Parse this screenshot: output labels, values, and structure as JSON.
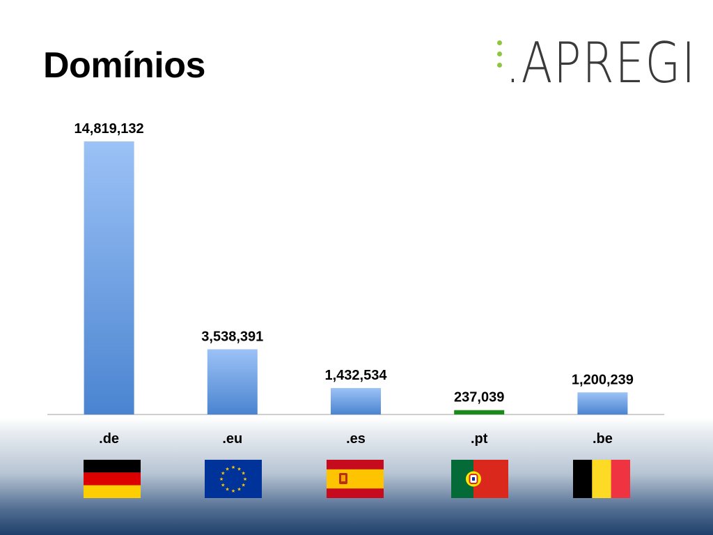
{
  "slide": {
    "title": "Domínios"
  },
  "logo": {
    "text": ".APREGI",
    "dot_color": "#8cc63f"
  },
  "chart_data": {
    "type": "bar",
    "title": "",
    "xlabel": "",
    "ylabel": "",
    "categories": [
      ".de",
      ".eu",
      ".es",
      ".pt",
      ".be"
    ],
    "values": [
      14819132,
      3538391,
      1432534,
      237039,
      1200239
    ],
    "value_labels": [
      "14,819,132",
      "3,538,391",
      "1,432,534",
      "237,039",
      "1,200,239"
    ],
    "bar_colors": [
      "#6b9ee6",
      "#6b9ee6",
      "#6b9ee6",
      "#1a8a1a",
      "#6b9ee6"
    ],
    "ylim": [
      0,
      14819132
    ],
    "grid": false,
    "legend": "none"
  },
  "flags": [
    {
      "icon": "germany-flag-icon",
      "colors": [
        "#000000",
        "#dd0000",
        "#ffce00"
      ]
    },
    {
      "icon": "eu-flag-icon",
      "colors": [
        "#003399",
        "#ffcc00"
      ]
    },
    {
      "icon": "spain-flag-icon",
      "colors": [
        "#c60b1e",
        "#ffc400"
      ]
    },
    {
      "icon": "portugal-flag-icon",
      "colors": [
        "#046a38",
        "#da291c",
        "#ffe900"
      ]
    },
    {
      "icon": "belgium-flag-icon",
      "colors": [
        "#000000",
        "#fdda24",
        "#ef3340"
      ]
    }
  ]
}
